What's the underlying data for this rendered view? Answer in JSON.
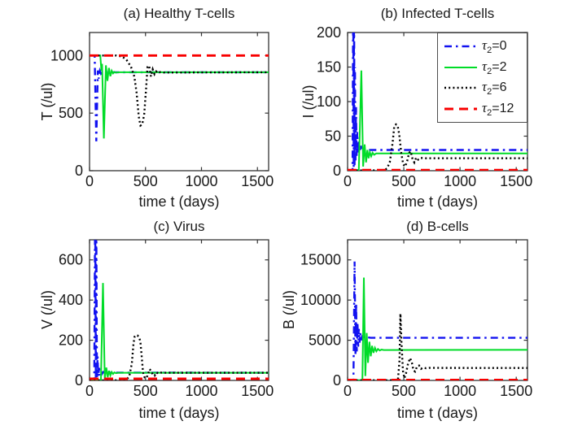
{
  "figure": {
    "background": "#ffffff"
  },
  "colors": {
    "tau0": "#1212f0",
    "tau2": "#00dc28",
    "tau6": "#000000",
    "tau12": "#f80000",
    "axis": "#333333",
    "text": "#1a1a1a"
  },
  "legend": {
    "position": "top-right of subplot (b)",
    "items": [
      {
        "name": "tau2-0",
        "tau": "τ",
        "sub": "2",
        "rest": "=0",
        "style": "dashdot",
        "color_key": "tau0"
      },
      {
        "name": "tau2-2",
        "tau": "τ",
        "sub": "2",
        "rest": "=2",
        "style": "solid",
        "color_key": "tau2"
      },
      {
        "name": "tau2-6",
        "tau": "τ",
        "sub": "2",
        "rest": "=6",
        "style": "dotted",
        "color_key": "tau6"
      },
      {
        "name": "tau2-12",
        "tau": "τ",
        "sub": "2",
        "rest": "=12",
        "style": "dashed",
        "color_key": "tau12"
      }
    ]
  },
  "chart_data": [
    {
      "id": "a",
      "type": "line",
      "title": "(a) Healthy T-cells",
      "xlabel": "time t (days)",
      "ylabel": "T (/ul)",
      "xlim": [
        0,
        1600
      ],
      "ylim": [
        0,
        1200
      ],
      "xticks": [
        0,
        500,
        1000,
        1500
      ],
      "yticks": [
        0,
        500,
        1000
      ],
      "grid": false,
      "box": true,
      "series": [
        {
          "name": "τ2=0",
          "style": "dashdot",
          "color_key": "tau0",
          "points": [
            [
              0,
              1000
            ],
            [
              46,
              1000
            ],
            [
              60,
              255
            ],
            [
              74,
              870
            ],
            [
              82,
              800
            ],
            [
              92,
              866
            ],
            [
              102,
              842
            ],
            [
              115,
              857
            ],
            [
              132,
              852
            ],
            [
              160,
              855
            ],
            [
              1600,
              855
            ]
          ]
        },
        {
          "name": "τ2=2",
          "style": "solid",
          "color_key": "tau2",
          "points": [
            [
              0,
              1000
            ],
            [
              96,
              1000
            ],
            [
              106,
              868
            ],
            [
              112,
              928
            ],
            [
              128,
              280
            ],
            [
              146,
              915
            ],
            [
              160,
              780
            ],
            [
              173,
              892
            ],
            [
              186,
              820
            ],
            [
              198,
              868
            ],
            [
              210,
              845
            ],
            [
              222,
              858
            ],
            [
              236,
              851
            ],
            [
              260,
              855
            ],
            [
              1600,
              855
            ]
          ]
        },
        {
          "name": "τ2=6",
          "style": "dotted",
          "color_key": "tau6",
          "points": [
            [
              0,
              1000
            ],
            [
              240,
              1000
            ],
            [
              290,
              992
            ],
            [
              330,
              963
            ],
            [
              370,
              903
            ],
            [
              400,
              818
            ],
            [
              420,
              678
            ],
            [
              440,
              468
            ],
            [
              455,
              392
            ],
            [
              470,
              400
            ],
            [
              488,
              485
            ],
            [
              505,
              705
            ],
            [
              518,
              900
            ],
            [
              532,
              912
            ],
            [
              548,
              818
            ],
            [
              564,
              880
            ],
            [
              580,
              838
            ],
            [
              596,
              862
            ],
            [
              612,
              847
            ],
            [
              632,
              857
            ],
            [
              660,
              853
            ],
            [
              1600,
              855
            ]
          ]
        },
        {
          "name": "τ2=12",
          "style": "dashed",
          "color_key": "tau12",
          "points": [
            [
              0,
              1000
            ],
            [
              1600,
              1000
            ]
          ]
        }
      ]
    },
    {
      "id": "b",
      "type": "line",
      "title": "(b) Infected T-cells",
      "xlabel": "time t (days)",
      "ylabel": "I (/ul)",
      "xlim": [
        0,
        1600
      ],
      "ylim": [
        0,
        200
      ],
      "xticks": [
        0,
        500,
        1000,
        1500
      ],
      "yticks": [
        0,
        50,
        100,
        150,
        200
      ],
      "grid": false,
      "box": true,
      "has_legend": true,
      "series": [
        {
          "name": "τ2=0",
          "style": "dashdot",
          "color_key": "tau0",
          "points": [
            [
              0,
              0.5
            ],
            [
              44,
              0.5
            ],
            [
              50,
              260
            ],
            [
              54,
              5
            ],
            [
              58,
              240
            ],
            [
              62,
              8
            ],
            [
              66,
              150
            ],
            [
              70,
              15
            ],
            [
              75,
              92
            ],
            [
              80,
              20
            ],
            [
              86,
              56
            ],
            [
              92,
              25
            ],
            [
              100,
              42
            ],
            [
              108,
              27
            ],
            [
              118,
              36
            ],
            [
              128,
              29
            ],
            [
              140,
              32
            ],
            [
              158,
              30
            ],
            [
              1600,
              30
            ]
          ]
        },
        {
          "name": "τ2=2",
          "style": "solid",
          "color_key": "tau2",
          "points": [
            [
              0,
              0.5
            ],
            [
              92,
              0.5
            ],
            [
              100,
              2
            ],
            [
              122,
              145
            ],
            [
              138,
              6
            ],
            [
              152,
              38
            ],
            [
              164,
              12
            ],
            [
              176,
              30
            ],
            [
              187,
              18
            ],
            [
              198,
              27
            ],
            [
              210,
              21
            ],
            [
              222,
              26
            ],
            [
              236,
              23
            ],
            [
              255,
              25
            ],
            [
              1600,
              25
            ]
          ]
        },
        {
          "name": "τ2=6",
          "style": "dotted",
          "color_key": "tau6",
          "points": [
            [
              0,
              0.5
            ],
            [
              320,
              0.5
            ],
            [
              350,
              3
            ],
            [
              375,
              12
            ],
            [
              400,
              40
            ],
            [
              415,
              64
            ],
            [
              430,
              67
            ],
            [
              445,
              65
            ],
            [
              460,
              52
            ],
            [
              478,
              25
            ],
            [
              495,
              9
            ],
            [
              512,
              6
            ],
            [
              530,
              14
            ],
            [
              548,
              26
            ],
            [
              562,
              28
            ],
            [
              578,
              17
            ],
            [
              594,
              12
            ],
            [
              610,
              19
            ],
            [
              628,
              16
            ],
            [
              648,
              18.5
            ],
            [
              690,
              18
            ],
            [
              1600,
              18
            ]
          ]
        },
        {
          "name": "τ2=12",
          "style": "dashed",
          "color_key": "tau12",
          "points": [
            [
              0,
              1
            ],
            [
              1600,
              1
            ]
          ]
        }
      ]
    },
    {
      "id": "c",
      "type": "line",
      "title": "(c) Virus",
      "xlabel": "time t (days)",
      "ylabel": "V (/ul)",
      "xlim": [
        0,
        1600
      ],
      "ylim": [
        0,
        700
      ],
      "xticks": [
        0,
        500,
        1000,
        1500
      ],
      "yticks": [
        0,
        200,
        400,
        600
      ],
      "grid": false,
      "box": true,
      "series": [
        {
          "name": "τ2=0",
          "style": "dashdot",
          "color_key": "tau0",
          "points": [
            [
              0,
              2
            ],
            [
              42,
              2
            ],
            [
              50,
              900
            ],
            [
              56,
              8
            ],
            [
              60,
              820
            ],
            [
              66,
              15
            ],
            [
              72,
              120
            ],
            [
              78,
              20
            ],
            [
              86,
              62
            ],
            [
              94,
              26
            ],
            [
              103,
              47
            ],
            [
              112,
              33
            ],
            [
              122,
              42
            ],
            [
              136,
              37
            ],
            [
              155,
              39
            ],
            [
              1600,
              38
            ]
          ]
        },
        {
          "name": "τ2=2",
          "style": "solid",
          "color_key": "tau2",
          "points": [
            [
              0,
              1
            ],
            [
              92,
              1
            ],
            [
              102,
              4
            ],
            [
              120,
              485
            ],
            [
              136,
              8
            ],
            [
              150,
              64
            ],
            [
              162,
              16
            ],
            [
              174,
              48
            ],
            [
              186,
              25
            ],
            [
              198,
              42
            ],
            [
              210,
              32
            ],
            [
              222,
              40
            ],
            [
              236,
              36
            ],
            [
              255,
              38
            ],
            [
              1600,
              38
            ]
          ]
        },
        {
          "name": "τ2=6",
          "style": "dotted",
          "color_key": "tau6",
          "points": [
            [
              0,
              1
            ],
            [
              300,
              1
            ],
            [
              330,
              5
            ],
            [
              355,
              20
            ],
            [
              378,
              85
            ],
            [
              392,
              180
            ],
            [
              403,
              218
            ],
            [
              415,
              225
            ],
            [
              428,
              224
            ],
            [
              441,
              217
            ],
            [
              454,
              196
            ],
            [
              466,
              118
            ],
            [
              478,
              40
            ],
            [
              492,
              14
            ],
            [
              506,
              11
            ],
            [
              520,
              26
            ],
            [
              536,
              56
            ],
            [
              550,
              48
            ],
            [
              565,
              28
            ],
            [
              580,
              23
            ],
            [
              597,
              40
            ],
            [
              615,
              34
            ],
            [
              635,
              39
            ],
            [
              680,
              38
            ],
            [
              1600,
              38
            ]
          ]
        },
        {
          "name": "τ2=12",
          "style": "dashed",
          "color_key": "tau12",
          "points": [
            [
              0,
              8
            ],
            [
              1600,
              8
            ]
          ]
        }
      ]
    },
    {
      "id": "d",
      "type": "line",
      "title": "(d) B-cells",
      "xlabel": "time t (days)",
      "ylabel": "B (/ul)",
      "xlim": [
        0,
        1600
      ],
      "ylim": [
        0,
        17500
      ],
      "xticks": [
        0,
        500,
        1000,
        1500
      ],
      "yticks": [
        0,
        5000,
        10000,
        15000
      ],
      "grid": false,
      "box": true,
      "series": [
        {
          "name": "τ2=0",
          "style": "dashdot",
          "color_key": "tau0",
          "points": [
            [
              0,
              30
            ],
            [
              52,
              30
            ],
            [
              62,
              14800
            ],
            [
              70,
              3100
            ],
            [
              76,
              9600
            ],
            [
              82,
              3600
            ],
            [
              88,
              7200
            ],
            [
              94,
              4200
            ],
            [
              100,
              6400
            ],
            [
              107,
              4700
            ],
            [
              114,
              5900
            ],
            [
              122,
              5000
            ],
            [
              130,
              5600
            ],
            [
              140,
              5120
            ],
            [
              152,
              5450
            ],
            [
              166,
              5240
            ],
            [
              182,
              5350
            ],
            [
              205,
              5300
            ],
            [
              1600,
              5300
            ]
          ]
        },
        {
          "name": "τ2=2",
          "style": "solid",
          "color_key": "tau2",
          "points": [
            [
              0,
              20
            ],
            [
              132,
              20
            ],
            [
              145,
              12800
            ],
            [
              158,
              550
            ],
            [
              170,
              5900
            ],
            [
              182,
              2200
            ],
            [
              194,
              4800
            ],
            [
              206,
              3000
            ],
            [
              218,
              4300
            ],
            [
              230,
              3430
            ],
            [
              243,
              4050
            ],
            [
              256,
              3620
            ],
            [
              270,
              3900
            ],
            [
              286,
              3720
            ],
            [
              302,
              3830
            ],
            [
              322,
              3780
            ],
            [
              1600,
              3800
            ]
          ]
        },
        {
          "name": "τ2=6",
          "style": "dotted",
          "color_key": "tau6",
          "points": [
            [
              0,
              20
            ],
            [
              430,
              20
            ],
            [
              448,
              120
            ],
            [
              462,
              2500
            ],
            [
              470,
              8300
            ],
            [
              480,
              4500
            ],
            [
              492,
              1200
            ],
            [
              505,
              260
            ],
            [
              520,
              900
            ],
            [
              538,
              2100
            ],
            [
              556,
              2780
            ],
            [
              572,
              2200
            ],
            [
              586,
              1250
            ],
            [
              600,
              1100
            ],
            [
              618,
              1750
            ],
            [
              636,
              1850
            ],
            [
              654,
              1450
            ],
            [
              672,
              1600
            ],
            [
              698,
              1520
            ],
            [
              725,
              1560
            ],
            [
              1600,
              1550
            ]
          ]
        },
        {
          "name": "τ2=12",
          "style": "dashed",
          "color_key": "tau12",
          "points": [
            [
              0,
              50
            ],
            [
              1600,
              50
            ]
          ]
        }
      ]
    }
  ]
}
